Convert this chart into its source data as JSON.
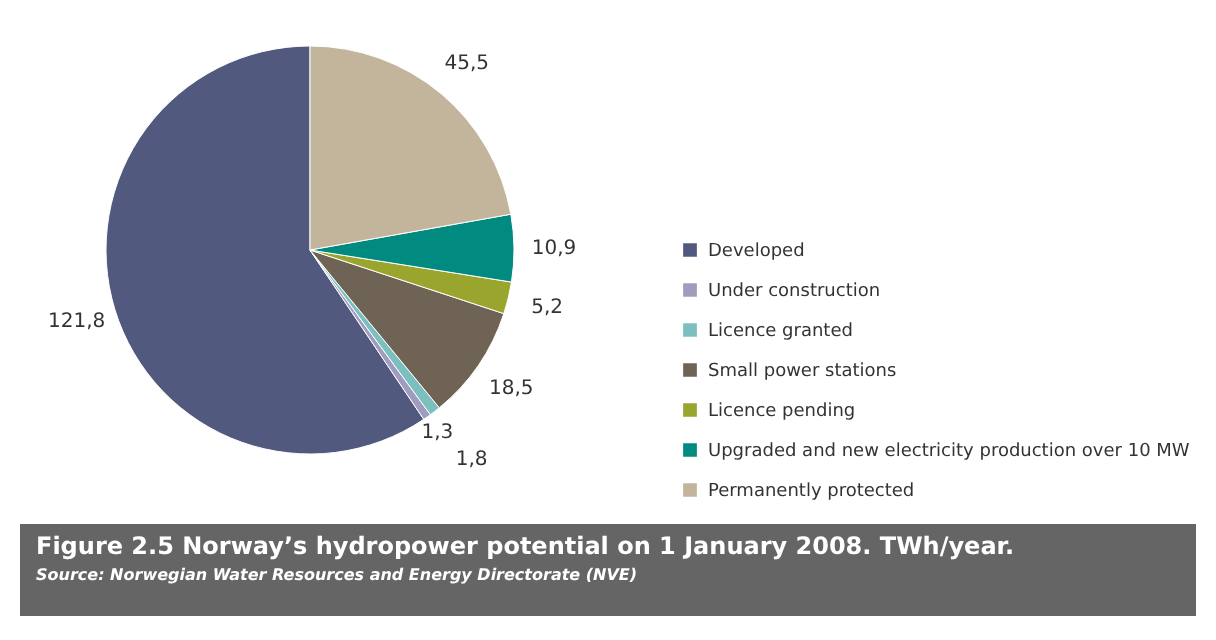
{
  "chart_data": {
    "type": "pie",
    "title": "Figure 2.5 Norway’s hydropower potential on 1 January 2008. TWh/year.",
    "annotations": [
      "Source: Norwegian Water Resources and Energy Directorate (NVE)"
    ],
    "categories": [
      "Developed",
      "Under construction",
      "Licence granted",
      "Small power stations",
      "Licence pending",
      "Upgraded and new electricity production over 10 MW",
      "Permanently protected"
    ],
    "values": [
      121.8,
      1.3,
      1.8,
      18.5,
      5.2,
      10.9,
      45.5
    ],
    "value_labels": [
      "121,8",
      "1,3",
      "1,8",
      "18,5",
      "5,2",
      "10,9",
      "45,5"
    ],
    "colors": [
      "#52597f",
      "#a09cbf",
      "#7cbfbf",
      "#6e6354",
      "#9aa52e",
      "#008a80",
      "#c3b59c"
    ],
    "legend": "right"
  }
}
